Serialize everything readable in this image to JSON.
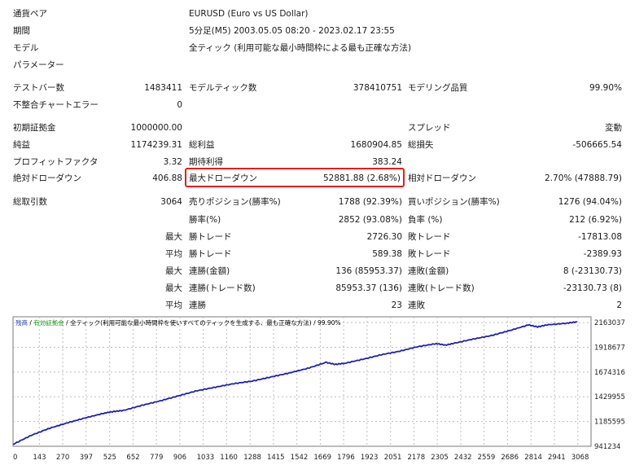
{
  "header": {
    "pair_label": "通貨ペア",
    "pair_value": "EURUSD (Euro vs US Dollar)",
    "period_label": "期間",
    "period_value": "5分足(M5) 2003.05.05 08:20 - 2023.02.17 23:55",
    "model_label": "モデル",
    "model_value": "全ティック (利用可能な最小時間枠による最も正確な方法)",
    "param_label": "パラメーター"
  },
  "stats": {
    "test_bars_label": "テストバー数",
    "test_bars_value": "1483411",
    "model_ticks_label": "モデルティック数",
    "model_ticks_value": "378410751",
    "modeling_quality_label": "モデリング品質",
    "modeling_quality_value": "99.90%",
    "mismatch_label": "不整合チャートエラー",
    "mismatch_value": "0",
    "initial_deposit_label": "初期証拠金",
    "initial_deposit_value": "1000000.00",
    "spread_label": "スプレッド",
    "spread_value": "変動",
    "net_profit_label": "純益",
    "net_profit_value": "1174239.31",
    "gross_profit_label": "総利益",
    "gross_profit_value": "1680904.85",
    "gross_loss_label": "総損失",
    "gross_loss_value": "-506665.54",
    "profit_factor_label": "プロフィットファクタ",
    "profit_factor_value": "3.32",
    "expected_payoff_label": "期待利得",
    "expected_payoff_value": "383.24",
    "abs_dd_label": "絶対ドローダウン",
    "abs_dd_value": "406.88",
    "max_dd_label": "最大ドローダウン",
    "max_dd_value": "52881.88 (2.68%)",
    "rel_dd_label": "相対ドローダウン",
    "rel_dd_value": "2.70% (47888.79)",
    "total_trades_label": "総取引数",
    "total_trades_value": "3064",
    "short_label": "売りポジション(勝率%)",
    "short_value": "1788 (92.39%)",
    "long_label": "買いポジション(勝率%)",
    "long_value": "1276 (94.04%)",
    "win_pct_label": "勝率(%)",
    "win_pct_value": "2852 (93.08%)",
    "loss_pct_label": "負率 (%)",
    "loss_pct_value": "212 (6.92%)",
    "max_word": "最大",
    "avg_word": "平均",
    "largest_win_label": "勝トレード",
    "largest_win_value": "2726.30",
    "largest_loss_label": "敗トレード",
    "largest_loss_value": "-17813.08",
    "avg_win_label": "勝トレード",
    "avg_win_value": "589.38",
    "avg_loss_label": "敗トレード",
    "avg_loss_value": "-2389.93",
    "max_consec_wins_money_label": "連勝(金額)",
    "max_consec_wins_money_value": "136 (85953.37)",
    "max_consec_losses_money_label": "連敗(金額)",
    "max_consec_losses_money_value": "8 (-23130.73)",
    "max_consec_profit_label": "連勝(トレード数)",
    "max_consec_profit_value": "85953.37 (136)",
    "max_consec_loss_label": "連敗(トレード数)",
    "max_consec_loss_value": "-23130.73 (8)",
    "avg_consec_wins_label": "連勝",
    "avg_consec_wins_value": "23",
    "avg_consec_losses_label": "連敗",
    "avg_consec_losses_value": "2"
  },
  "chart_data": {
    "type": "line",
    "legend": {
      "balance": "残高",
      "sep1": " / ",
      "equity": "有効証拠金",
      "sep2": " / ",
      "model": "全ティック(利用可能な最小時間枠を使いすべてのティックを生成する、最も正確な方法)",
      "sep3": " / ",
      "quality": "99.90%"
    },
    "colors": {
      "line": "#2020b0",
      "balance_label": "#1f3fbf",
      "equity_label": "#1f9a1f",
      "grid": "#bdbdbd"
    },
    "x_ticks": [
      0,
      143,
      270,
      397,
      525,
      652,
      779,
      906,
      1033,
      1160,
      1288,
      1415,
      1542,
      1669,
      1796,
      1923,
      2051,
      2178,
      2305,
      2432,
      2559,
      2686,
      2814,
      2941,
      3068
    ],
    "y_ticks": [
      941234,
      1185595,
      1429955,
      1674316,
      1918677,
      2163037
    ],
    "xlim": [
      0,
      3140
    ],
    "ylim": [
      941234,
      2220000
    ],
    "series": [
      {
        "x": [
          0,
          100,
          200,
          300,
          400,
          500,
          550,
          600,
          700,
          800,
          900,
          1000,
          1100,
          1200,
          1300,
          1400,
          1500,
          1600,
          1700,
          1750,
          1800,
          1900,
          2000,
          2100,
          2200,
          2300,
          2350,
          2400,
          2500,
          2600,
          2700,
          2800,
          2850,
          2900,
          3000,
          3064
        ],
        "y": [
          960000,
          1050000,
          1120000,
          1175000,
          1225000,
          1270000,
          1285000,
          1295000,
          1345000,
          1390000,
          1440000,
          1490000,
          1525000,
          1560000,
          1585000,
          1625000,
          1665000,
          1710000,
          1770000,
          1750000,
          1760000,
          1800000,
          1845000,
          1880000,
          1925000,
          1955000,
          1940000,
          1960000,
          2000000,
          2035000,
          2085000,
          2140000,
          2120000,
          2140000,
          2155000,
          2170000
        ]
      }
    ]
  }
}
